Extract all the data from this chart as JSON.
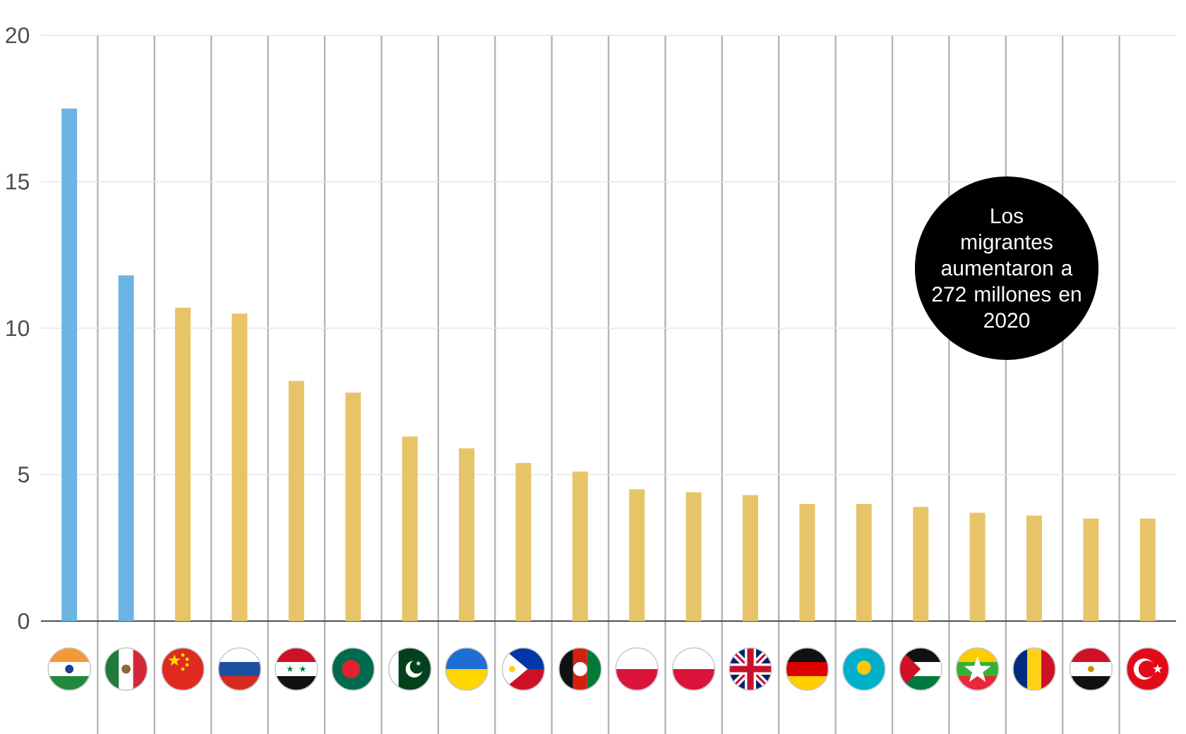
{
  "chart_data": {
    "type": "bar",
    "categories": [
      null,
      null,
      null,
      null,
      null,
      null,
      null,
      null,
      null,
      null,
      null,
      null,
      null,
      null,
      null,
      null,
      null,
      null,
      null,
      null
    ],
    "values": [
      17.5,
      11.8,
      10.7,
      10.5,
      8.2,
      7.8,
      6.3,
      5.9,
      5.4,
      5.1,
      4.5,
      4.4,
      4.3,
      4.0,
      4.0,
      3.9,
      3.7,
      3.6,
      3.5,
      3.5
    ],
    "colors": [
      "#6cb4e4",
      "#6cb4e4",
      "#e8c468",
      "#e8c468",
      "#e8c468",
      "#e8c468",
      "#e8c468",
      "#e8c468",
      "#e8c468",
      "#e8c468",
      "#e8c468",
      "#e8c468",
      "#e8c468",
      "#e8c468",
      "#e8c468",
      "#e8c468",
      "#e8c468",
      "#e8c468",
      "#e8c468",
      "#e8c468"
    ],
    "ylim": [
      0,
      20
    ],
    "yticks": [
      0,
      5,
      10,
      15,
      20
    ],
    "grid": true,
    "annotations": [
      "Los migrantes aumentaron a 272 millones en 2020"
    ]
  }
}
